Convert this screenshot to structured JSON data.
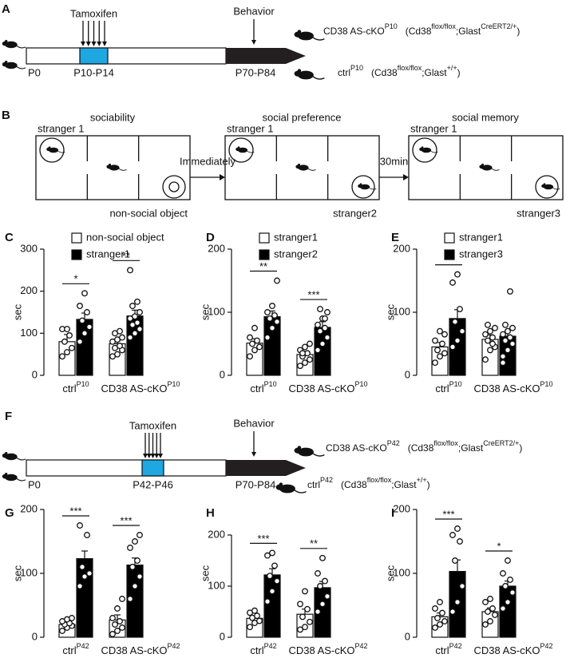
{
  "timelines": [
    {
      "panel": "A",
      "tamoxifen": "Tamoxifen",
      "behavior": "Behavior",
      "ticks": [
        "P0",
        "P10-P14",
        "P70-P84"
      ],
      "groups": [
        {
          "name": "CD38 AS-cKO",
          "sup": "P10",
          "genotype": [
            "(Cd38",
            "flox/flox",
            ";Glast",
            "CreERT2/+",
            ")"
          ]
        },
        {
          "name": "ctrl",
          "sup": "P10",
          "genotype": [
            "(Cd38",
            "flox/flox",
            ";Glast",
            "+/+",
            ")"
          ]
        }
      ]
    },
    {
      "panel": "F",
      "tamoxifen": "Tamoxifen",
      "behavior": "Behavior",
      "ticks": [
        "P0",
        "P42-P46",
        "P70-P84"
      ],
      "groups": [
        {
          "name": "CD38 AS-cKO",
          "sup": "P42",
          "genotype": [
            "(Cd38",
            "flox/flox",
            ";Glast",
            "CreERT2/+",
            ")"
          ]
        },
        {
          "name": "ctrl",
          "sup": "P42",
          "genotype": [
            "(Cd38",
            "flox/flox",
            ";Glast",
            "+/+",
            ")"
          ]
        }
      ]
    }
  ],
  "tests": {
    "panel": "B",
    "boxes": [
      {
        "title": "sociability",
        "left": "stranger 1",
        "right": "non-social object"
      },
      {
        "title": "social preference",
        "left": "stranger 1",
        "right": "stranger2"
      },
      {
        "title": "social memory",
        "left": "stranger 1",
        "right": "stranger3"
      }
    ],
    "transitions": [
      "Immediately",
      "30min"
    ]
  },
  "chart_data": [
    {
      "type": "bar",
      "panel": "C",
      "ylabel": "sec",
      "ylim": [
        0,
        300
      ],
      "yticks": [
        0,
        100,
        200,
        300
      ],
      "categories": [
        "ctrl",
        "CD38 AS-cKO"
      ],
      "category_sups": [
        "P10",
        "P10"
      ],
      "significance": [
        "*",
        "**"
      ],
      "series": [
        {
          "name": "non-social object",
          "color": "#ffffff",
          "values": [
            80,
            75
          ],
          "errors": [
            17,
            7
          ],
          "points": [
            [
              45,
              55,
              65,
              80,
              95,
              110,
              110
            ],
            [
              45,
              50,
              60,
              65,
              70,
              80,
              85,
              90,
              100,
              105
            ]
          ]
        },
        {
          "name": "stranger1",
          "color": "#000000",
          "values": [
            133,
            141
          ],
          "errors": [
            15,
            14
          ],
          "points": [
            [
              80,
              100,
              115,
              130,
              150,
              165,
              195
            ],
            [
              90,
              100,
              110,
              120,
              125,
              135,
              140,
              150,
              165,
              175,
              250
            ]
          ]
        }
      ]
    },
    {
      "type": "bar",
      "panel": "D",
      "ylabel": "sec",
      "ylim": [
        0,
        200
      ],
      "yticks": [
        0,
        100,
        200
      ],
      "categories": [
        "ctrl",
        "CD38 AS-cKO"
      ],
      "category_sups": [
        "P10",
        "P10"
      ],
      "significance": [
        "**",
        "***"
      ],
      "series": [
        {
          "name": "stranger1",
          "color": "#ffffff",
          "values": [
            51,
            33
          ],
          "errors": [
            7,
            5
          ],
          "points": [
            [
              30,
              40,
              45,
              50,
              55,
              60,
              75
            ],
            [
              15,
              20,
              25,
              30,
              35,
              40,
              45,
              50,
              35
            ]
          ]
        },
        {
          "name": "stranger2",
          "color": "#000000",
          "values": [
            93,
            76
          ],
          "errors": [
            9,
            9
          ],
          "points": [
            [
              60,
              75,
              85,
              90,
              95,
              100,
              110,
              150
            ],
            [
              40,
              50,
              60,
              70,
              75,
              80,
              90,
              100,
              105,
              90
            ]
          ]
        }
      ]
    },
    {
      "type": "bar",
      "panel": "E",
      "ylabel": "sec",
      "ylim": [
        0,
        200
      ],
      "yticks": [
        0,
        100,
        200
      ],
      "categories": [
        "ctrl",
        "CD38 AS-cKO"
      ],
      "category_sups": [
        "P10",
        "P10"
      ],
      "significance": [
        "*",
        null
      ],
      "series": [
        {
          "name": "stranger1",
          "color": "#ffffff",
          "values": [
            45,
            57
          ],
          "errors": [
            7,
            7
          ],
          "points": [
            [
              20,
              30,
              35,
              40,
              50,
              55,
              70,
              65
            ],
            [
              25,
              40,
              45,
              55,
              60,
              65,
              70,
              75,
              80,
              50
            ]
          ]
        },
        {
          "name": "stranger3",
          "color": "#000000",
          "values": [
            90,
            62
          ],
          "errors": [
            14,
            9
          ],
          "points": [
            [
              45,
              55,
              70,
              85,
              105,
              147,
              160
            ],
            [
              30,
              40,
              50,
              55,
              60,
              65,
              70,
              75,
              80,
              133,
              20
            ]
          ]
        }
      ]
    },
    {
      "type": "bar",
      "panel": "G",
      "ylabel": "sec",
      "ylim": [
        0,
        200
      ],
      "yticks": [
        0,
        100,
        200
      ],
      "categories": [
        "ctrl",
        "CD38 AS-cKO"
      ],
      "category_sups": [
        "P42",
        "P42"
      ],
      "significance": [
        "***",
        "***"
      ],
      "series": [
        {
          "color": "#ffffff",
          "values": [
            20,
            27
          ],
          "errors": [
            3,
            8
          ],
          "points": [
            [
              10,
              15,
              18,
              20,
              22,
              25,
              28,
              30
            ],
            [
              5,
              10,
              15,
              20,
              25,
              30,
              45,
              60
            ]
          ]
        },
        {
          "color": "#000000",
          "values": [
            123,
            113
          ],
          "errors": [
            12,
            11
          ],
          "points": [
            [
              80,
              95,
              100,
              110,
              160,
              175
            ],
            [
              60,
              80,
              95,
              110,
              120,
              140,
              150,
              160
            ]
          ]
        }
      ]
    },
    {
      "type": "bar",
      "panel": "H",
      "ylabel": "sec",
      "ylim": [
        0,
        250
      ],
      "yticks": [
        0,
        100,
        200
      ],
      "categories": [
        "ctrl",
        "CD38 AS-cKO"
      ],
      "category_sups": [
        "P42",
        "P42"
      ],
      "significance": [
        "***",
        "**"
      ],
      "series": [
        {
          "color": "#ffffff",
          "values": [
            37,
            45
          ],
          "errors": [
            5,
            10
          ],
          "points": [
            [
              20,
              28,
              32,
              38,
              42,
              48,
              52
            ],
            [
              15,
              20,
              30,
              40,
              55,
              65,
              90
            ]
          ]
        },
        {
          "color": "#000000",
          "values": [
            122,
            97
          ],
          "errors": [
            12,
            12
          ],
          "points": [
            [
              70,
              90,
              110,
              120,
              140,
              160,
              165
            ],
            [
              50,
              65,
              80,
              100,
              110,
              125,
              155
            ]
          ]
        }
      ]
    },
    {
      "type": "bar",
      "panel": "I",
      "ylabel": "sec",
      "ylim": [
        0,
        200
      ],
      "yticks": [
        0,
        100,
        200
      ],
      "categories": [
        "ctrl",
        "CD38 AS-cKO"
      ],
      "category_sups": [
        "P42",
        "P42"
      ],
      "significance": [
        "***",
        "*"
      ],
      "series": [
        {
          "color": "#ffffff",
          "values": [
            32,
            40
          ],
          "errors": [
            6,
            6
          ],
          "points": [
            [
              15,
              20,
              25,
              30,
              38,
              45,
              55
            ],
            [
              20,
              25,
              35,
              40,
              45,
              55,
              60
            ]
          ]
        },
        {
          "color": "#000000",
          "values": [
            103,
            80
          ],
          "errors": [
            18,
            8
          ],
          "points": [
            [
              40,
              55,
              80,
              120,
              150,
              160,
              170
            ],
            [
              45,
              55,
              70,
              80,
              90,
              100,
              120
            ]
          ]
        }
      ]
    }
  ]
}
